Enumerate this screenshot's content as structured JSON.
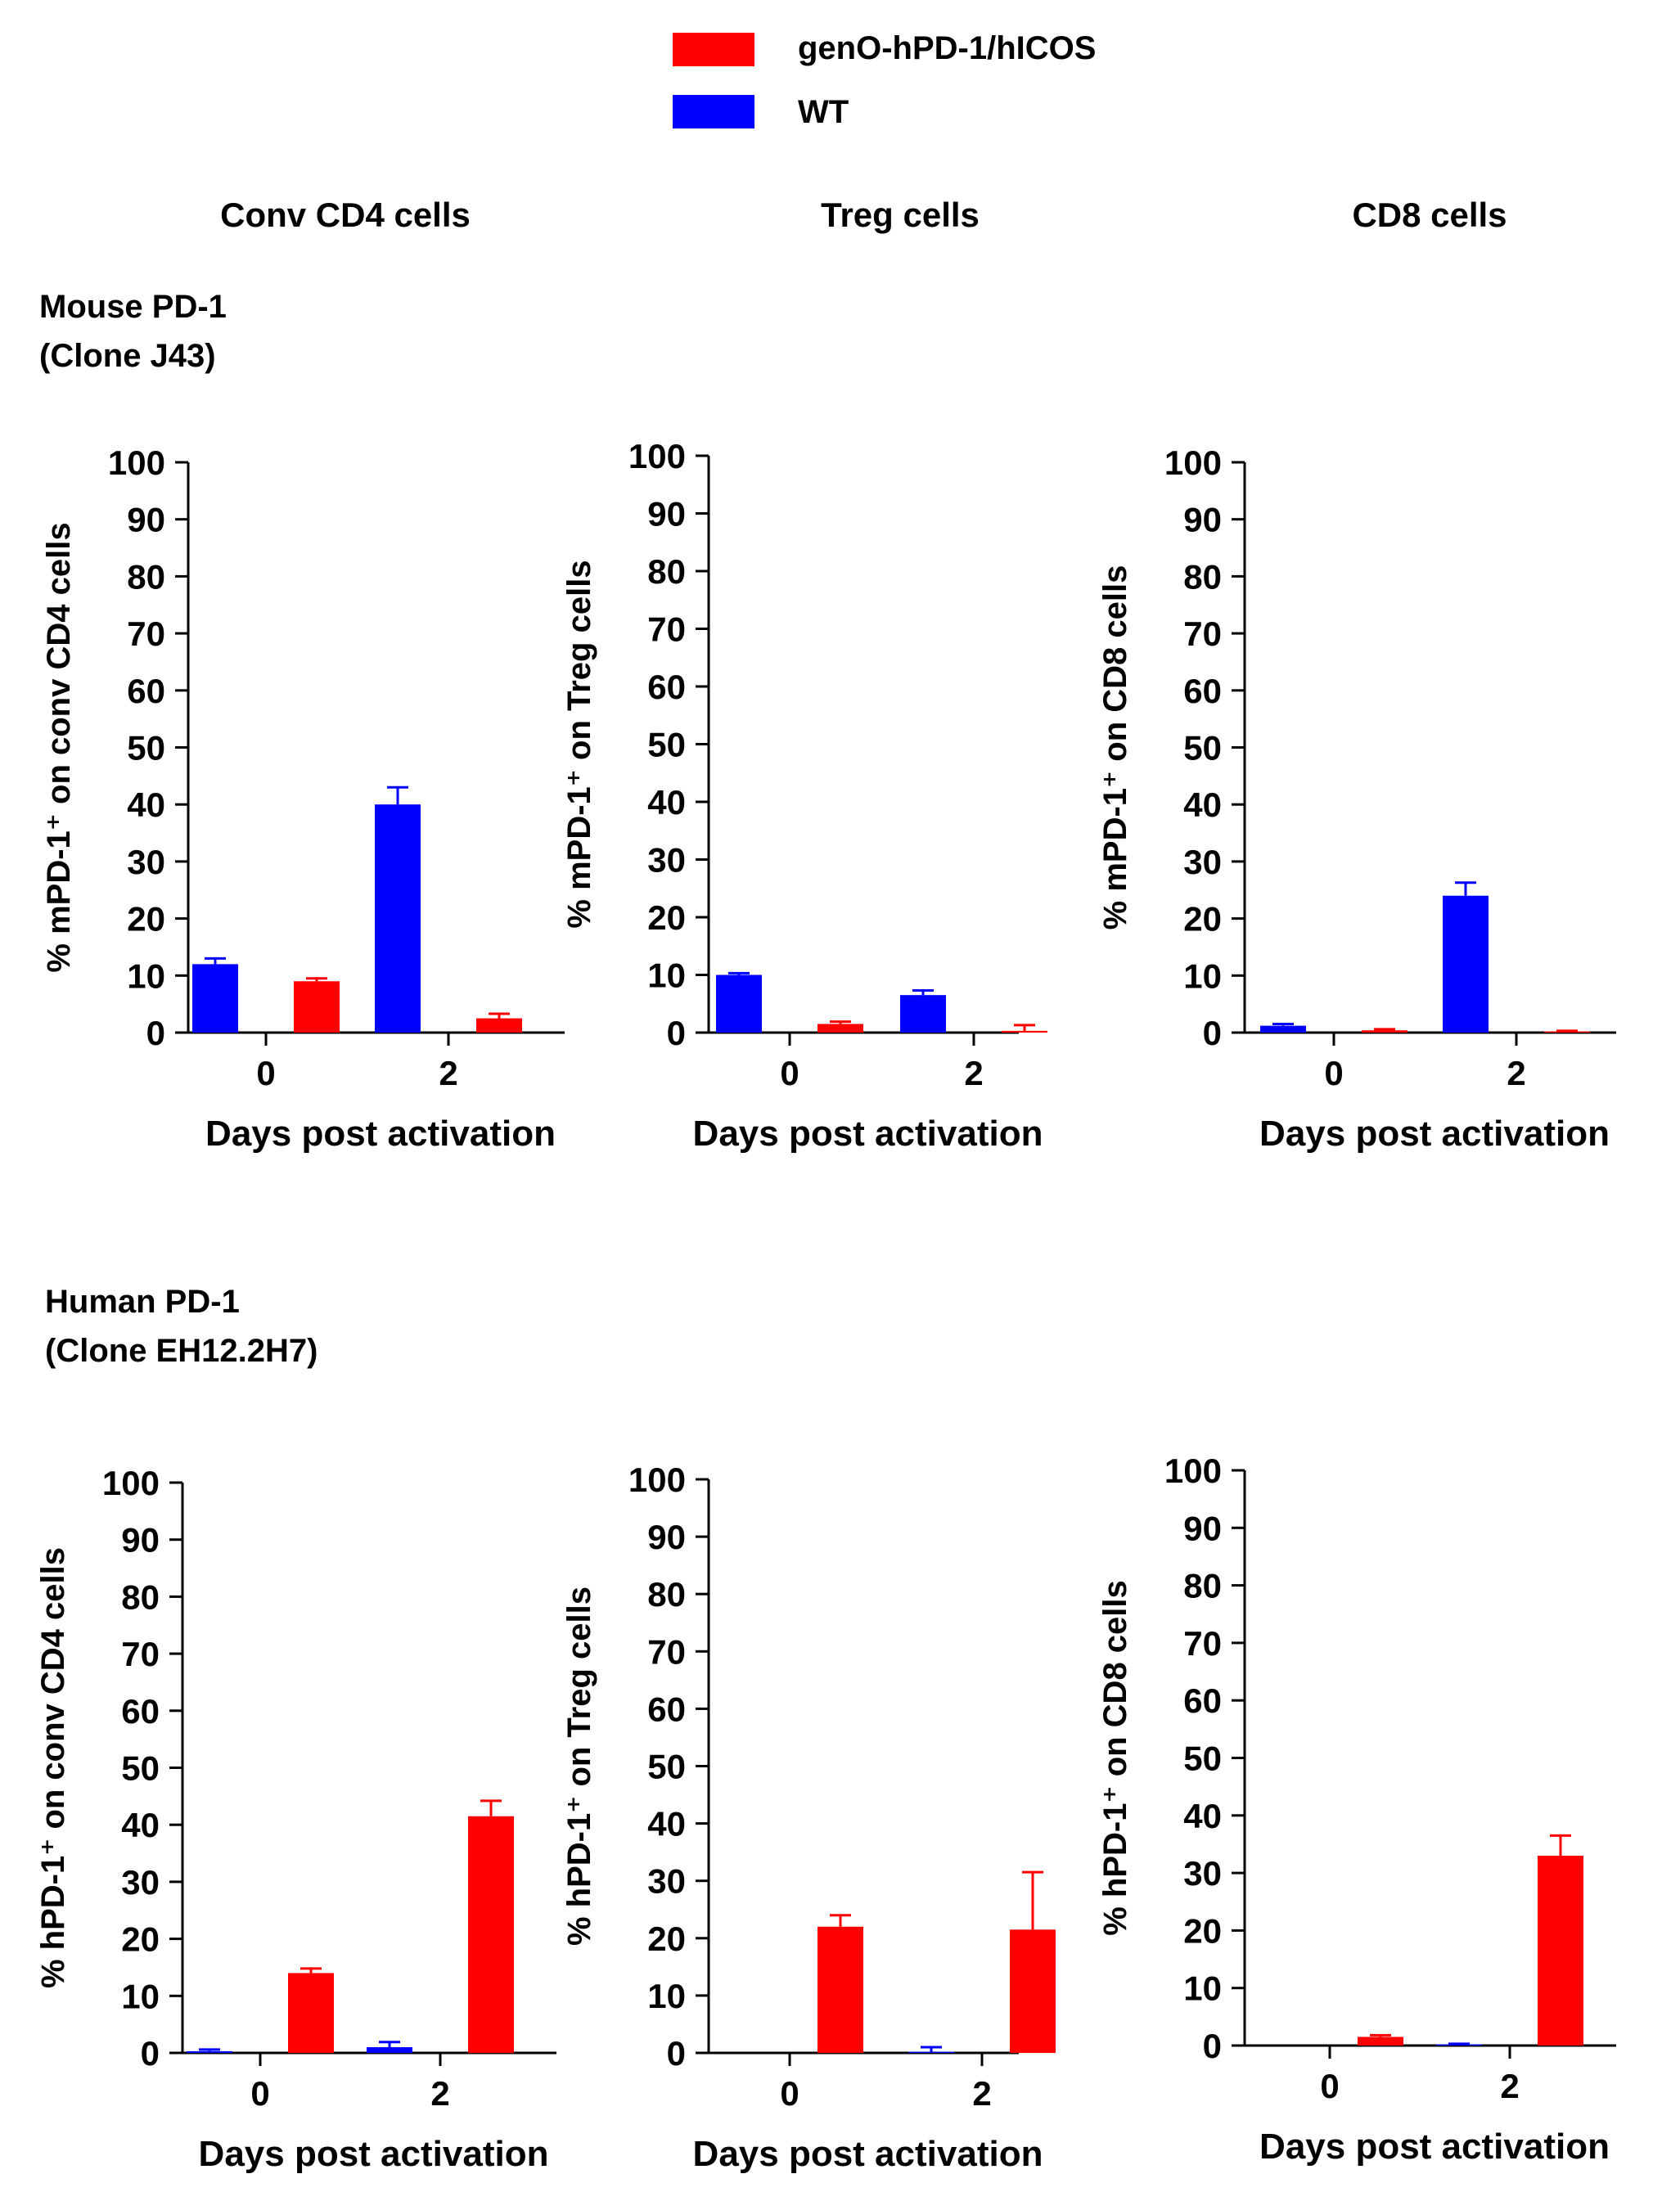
{
  "legend": [
    {
      "label": "genO-hPD-1/hICOS",
      "color": "#ff0000"
    },
    {
      "label": "WT",
      "color": "#0000ff"
    }
  ],
  "column_titles": [
    "Conv CD4 cells",
    "Treg cells",
    "CD8 cells"
  ],
  "row_titles": [
    [
      "Mouse PD-1",
      "(Clone J43)"
    ],
    [
      "Human PD-1",
      "(Clone EH12.2H7)"
    ]
  ],
  "chart_data": [
    {
      "type": "bar",
      "ylabel": "% mPD-1⁺ on conv CD4 cells",
      "xlabel": "Days post activation",
      "categories": [
        "0",
        "2"
      ],
      "ylim": [
        0,
        100
      ],
      "yticks": [
        "0",
        "10",
        "20",
        "30",
        "40",
        "50",
        "60",
        "70",
        "80",
        "90",
        "100"
      ],
      "series": [
        {
          "name": "WT",
          "color": "#0000ff",
          "values": [
            12,
            40
          ],
          "errors": [
            1,
            3
          ]
        },
        {
          "name": "genO-hPD-1/hICOS",
          "color": "#ff0000",
          "values": [
            9,
            2.5
          ],
          "errors": [
            0.5,
            0.8
          ]
        }
      ]
    },
    {
      "type": "bar",
      "ylabel": "% mPD-1⁺ on Treg cells",
      "xlabel": "Days post activation",
      "categories": [
        "0",
        "2"
      ],
      "ylim": [
        0,
        100
      ],
      "yticks": [
        "0",
        "10",
        "20",
        "30",
        "40",
        "50",
        "60",
        "70",
        "80",
        "90",
        "100"
      ],
      "series": [
        {
          "name": "WT",
          "color": "#0000ff",
          "values": [
            10,
            6.5
          ],
          "errors": [
            0.3,
            0.8
          ]
        },
        {
          "name": "genO-hPD-1/hICOS",
          "color": "#ff0000",
          "values": [
            1.5,
            0.3
          ],
          "errors": [
            0.4,
            1
          ]
        }
      ]
    },
    {
      "type": "bar",
      "ylabel": "% mPD-1⁺ on CD8 cells",
      "xlabel": "Days post activation",
      "categories": [
        "0",
        "2"
      ],
      "ylim": [
        0,
        100
      ],
      "yticks": [
        "0",
        "10",
        "20",
        "30",
        "40",
        "50",
        "60",
        "70",
        "80",
        "90",
        "100"
      ],
      "series": [
        {
          "name": "WT",
          "color": "#0000ff",
          "values": [
            1.2,
            24
          ],
          "errors": [
            0.3,
            2.3
          ]
        },
        {
          "name": "genO-hPD-1/hICOS",
          "color": "#ff0000",
          "values": [
            0.4,
            0.2
          ],
          "errors": [
            0.2,
            0.1
          ]
        }
      ]
    },
    {
      "type": "bar",
      "ylabel": "% hPD-1⁺ on conv CD4 cells",
      "xlabel": "Days post activation",
      "categories": [
        "0",
        "2"
      ],
      "ylim": [
        0,
        100
      ],
      "yticks": [
        "0",
        "10",
        "20",
        "30",
        "40",
        "50",
        "60",
        "70",
        "80",
        "90",
        "100"
      ],
      "series": [
        {
          "name": "WT",
          "color": "#0000ff",
          "values": [
            0.3,
            1
          ],
          "errors": [
            0.3,
            0.9
          ]
        },
        {
          "name": "genO-hPD-1/hICOS",
          "color": "#ff0000",
          "values": [
            14,
            41.5
          ],
          "errors": [
            0.8,
            2.7
          ]
        }
      ]
    },
    {
      "type": "bar",
      "ylabel": "% hPD-1⁺ on Treg cells",
      "xlabel": "Days post activation",
      "categories": [
        "0",
        "2"
      ],
      "ylim": [
        0,
        100
      ],
      "yticks": [
        "0",
        "10",
        "20",
        "30",
        "40",
        "50",
        "60",
        "70",
        "80",
        "90",
        "100"
      ],
      "series": [
        {
          "name": "WT",
          "color": "#0000ff",
          "values": [
            0,
            0.2
          ],
          "errors": [
            0,
            0.8
          ]
        },
        {
          "name": "genO-hPD-1/hICOS",
          "color": "#ff0000",
          "values": [
            22,
            21.5
          ],
          "errors": [
            2,
            10
          ]
        }
      ]
    },
    {
      "type": "bar",
      "ylabel": "% hPD-1⁺ on CD8 cells",
      "xlabel": "Days post activation",
      "categories": [
        "0",
        "2"
      ],
      "ylim": [
        0,
        100
      ],
      "yticks": [
        "0",
        "10",
        "20",
        "30",
        "40",
        "50",
        "60",
        "70",
        "80",
        "90",
        "100"
      ],
      "series": [
        {
          "name": "WT",
          "color": "#0000ff",
          "values": [
            0,
            0.2
          ],
          "errors": [
            0,
            0.1
          ]
        },
        {
          "name": "genO-hPD-1/hICOS",
          "color": "#ff0000",
          "values": [
            1.5,
            33
          ],
          "errors": [
            0.3,
            3.5
          ]
        }
      ]
    }
  ]
}
